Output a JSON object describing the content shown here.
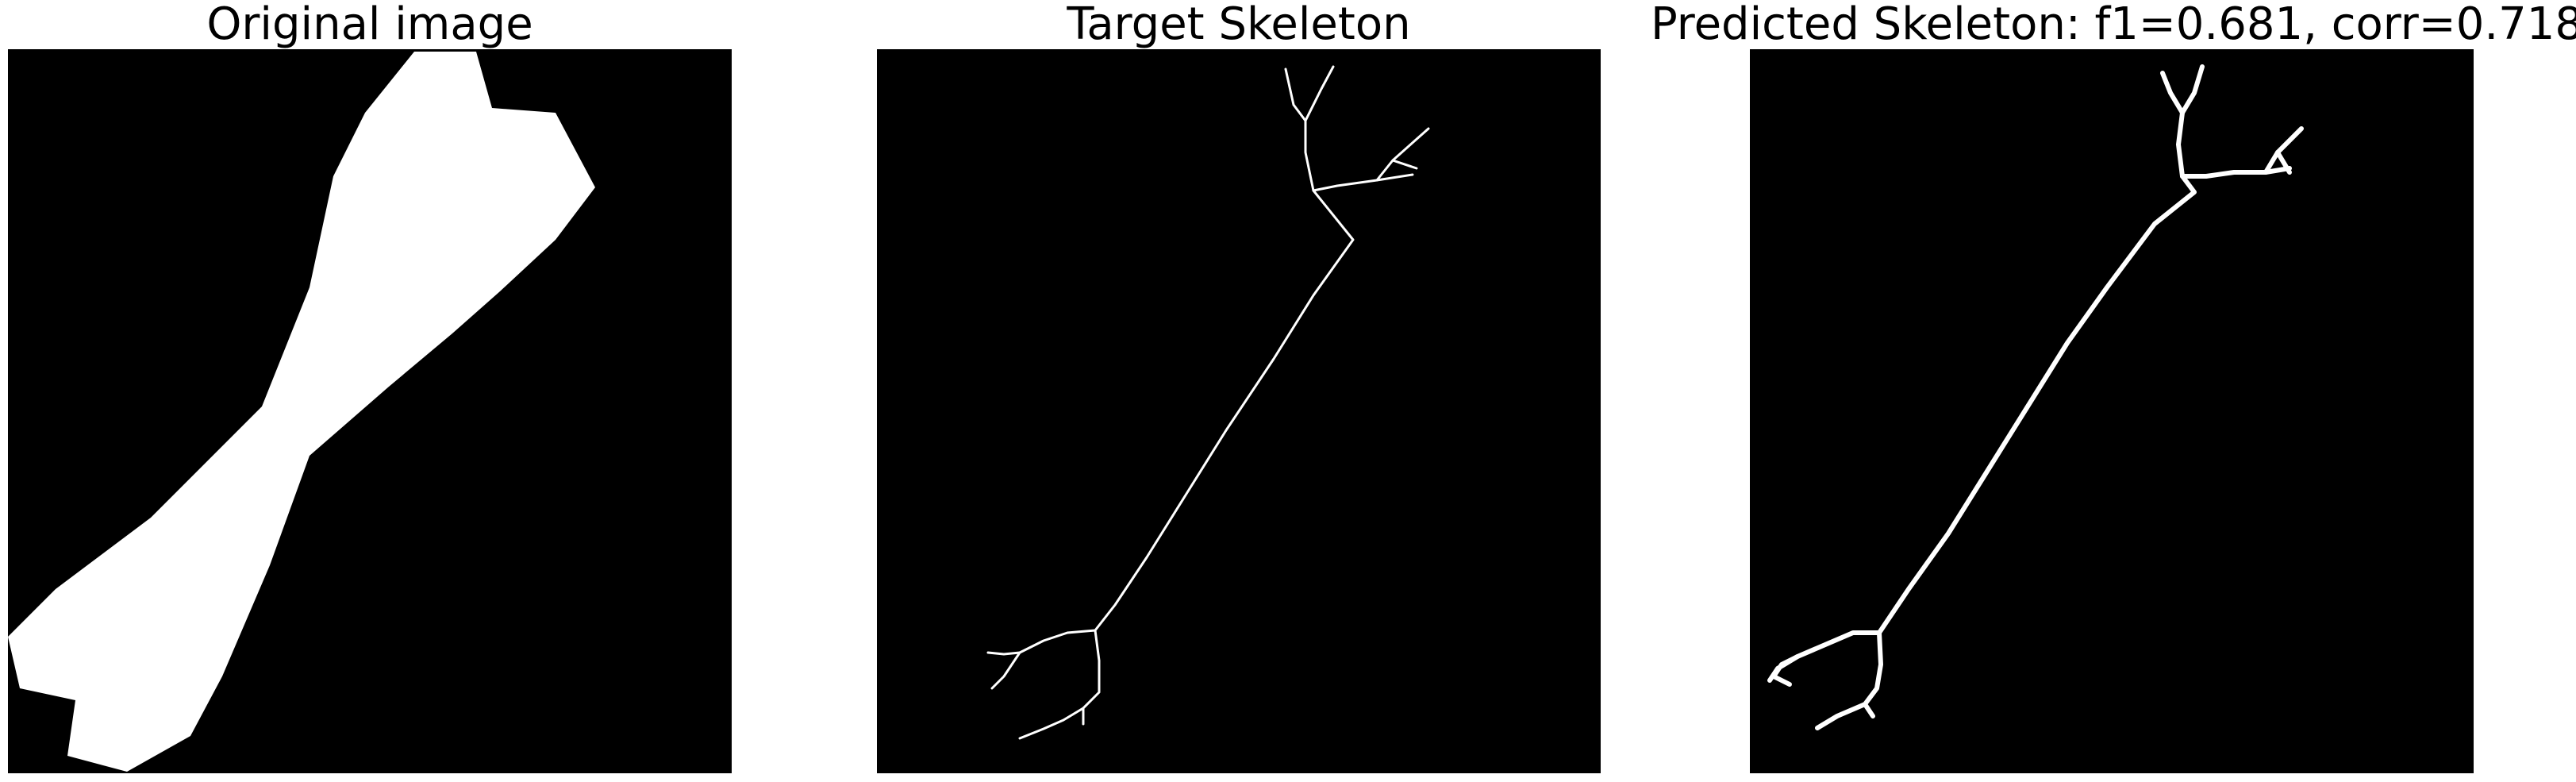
{
  "panels": [
    {
      "title": "Original image",
      "content": "white dumbbell-shaped polygon on black"
    },
    {
      "title": "Target Skeleton",
      "content": "thin white skeleton line with branched ends on black"
    },
    {
      "title": "Predicted Skeleton: f1=0.681, corr=0.718",
      "content": "thicker white predicted skeleton line with branched ends on black"
    }
  ],
  "colors": {
    "background": "#000000",
    "foreground": "#ffffff",
    "page": "#ffffff"
  }
}
